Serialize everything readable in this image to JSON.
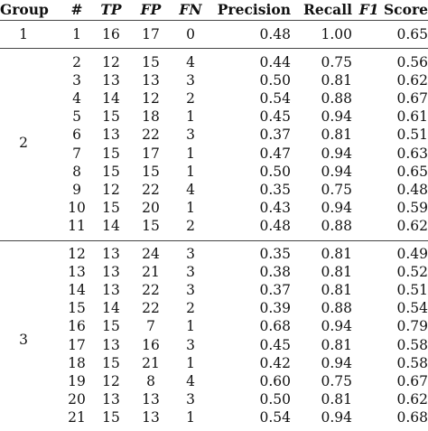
{
  "headers": {
    "group": "Group",
    "num": "#",
    "tp": "TP",
    "fp": "FP",
    "fn": "FN",
    "precision": "Precision",
    "recall": "Recall",
    "f1_italic": "F1",
    "f1_rest": " Score"
  },
  "groups": [
    {
      "label": "1"
    },
    {
      "label": "2"
    },
    {
      "label": "3"
    }
  ],
  "rows": [
    {
      "num": "1",
      "tp": "16",
      "fp": "17",
      "fn": "0",
      "precision": "0.48",
      "recall": "1.00",
      "f1": "0.65"
    },
    {
      "num": "2",
      "tp": "12",
      "fp": "15",
      "fn": "4",
      "precision": "0.44",
      "recall": "0.75",
      "f1": "0.56"
    },
    {
      "num": "3",
      "tp": "13",
      "fp": "13",
      "fn": "3",
      "precision": "0.50",
      "recall": "0.81",
      "f1": "0.62"
    },
    {
      "num": "4",
      "tp": "14",
      "fp": "12",
      "fn": "2",
      "precision": "0.54",
      "recall": "0.88",
      "f1": "0.67"
    },
    {
      "num": "5",
      "tp": "15",
      "fp": "18",
      "fn": "1",
      "precision": "0.45",
      "recall": "0.94",
      "f1": "0.61"
    },
    {
      "num": "6",
      "tp": "13",
      "fp": "22",
      "fn": "3",
      "precision": "0.37",
      "recall": "0.81",
      "f1": "0.51"
    },
    {
      "num": "7",
      "tp": "15",
      "fp": "17",
      "fn": "1",
      "precision": "0.47",
      "recall": "0.94",
      "f1": "0.63"
    },
    {
      "num": "8",
      "tp": "15",
      "fp": "15",
      "fn": "1",
      "precision": "0.50",
      "recall": "0.94",
      "f1": "0.65"
    },
    {
      "num": "9",
      "tp": "12",
      "fp": "22",
      "fn": "4",
      "precision": "0.35",
      "recall": "0.75",
      "f1": "0.48"
    },
    {
      "num": "10",
      "tp": "15",
      "fp": "20",
      "fn": "1",
      "precision": "0.43",
      "recall": "0.94",
      "f1": "0.59"
    },
    {
      "num": "11",
      "tp": "14",
      "fp": "15",
      "fn": "2",
      "precision": "0.48",
      "recall": "0.88",
      "f1": "0.62"
    },
    {
      "num": "12",
      "tp": "13",
      "fp": "24",
      "fn": "3",
      "precision": "0.35",
      "recall": "0.81",
      "f1": "0.49"
    },
    {
      "num": "13",
      "tp": "13",
      "fp": "21",
      "fn": "3",
      "precision": "0.38",
      "recall": "0.81",
      "f1": "0.52"
    },
    {
      "num": "14",
      "tp": "13",
      "fp": "22",
      "fn": "3",
      "precision": "0.37",
      "recall": "0.81",
      "f1": "0.51"
    },
    {
      "num": "15",
      "tp": "14",
      "fp": "22",
      "fn": "2",
      "precision": "0.39",
      "recall": "0.88",
      "f1": "0.54"
    },
    {
      "num": "16",
      "tp": "15",
      "fp": "7",
      "fn": "1",
      "precision": "0.68",
      "recall": "0.94",
      "f1": "0.79"
    },
    {
      "num": "17",
      "tp": "13",
      "fp": "16",
      "fn": "3",
      "precision": "0.45",
      "recall": "0.81",
      "f1": "0.58"
    },
    {
      "num": "18",
      "tp": "15",
      "fp": "21",
      "fn": "1",
      "precision": "0.42",
      "recall": "0.94",
      "f1": "0.58"
    },
    {
      "num": "19",
      "tp": "12",
      "fp": "8",
      "fn": "4",
      "precision": "0.60",
      "recall": "0.75",
      "f1": "0.67"
    },
    {
      "num": "20",
      "tp": "13",
      "fp": "13",
      "fn": "3",
      "precision": "0.50",
      "recall": "0.81",
      "f1": "0.62"
    },
    {
      "num": "21",
      "tp": "15",
      "fp": "13",
      "fn": "1",
      "precision": "0.54",
      "recall": "0.94",
      "f1": "0.68"
    }
  ]
}
